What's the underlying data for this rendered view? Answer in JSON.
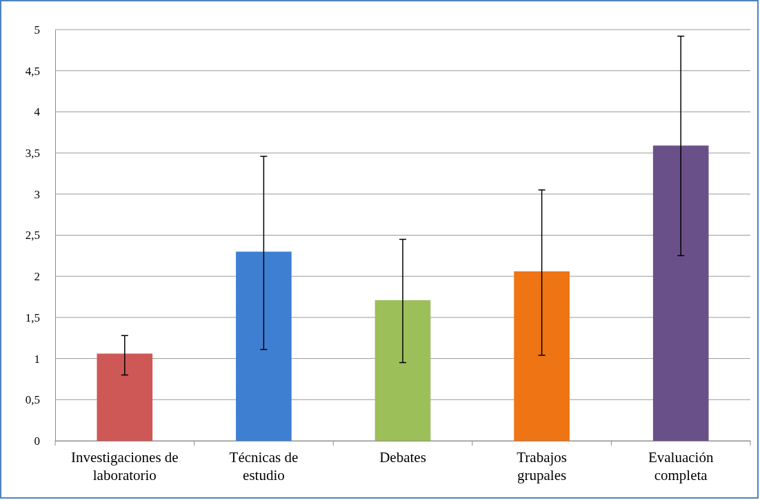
{
  "chart_data": {
    "type": "bar",
    "categories": [
      "Investigaciones de laboratorio",
      "Técnicas de estudio",
      "Debates",
      "Trabajos grupales",
      "Evaluación completa"
    ],
    "values": [
      1.06,
      2.3,
      1.71,
      2.06,
      3.59
    ],
    "colors": [
      "#cd5856",
      "#3f7fd2",
      "#9cbf5a",
      "#ee7414",
      "#6a5089"
    ],
    "errors": [
      [
        0.8,
        1.28
      ],
      [
        1.11,
        3.46
      ],
      [
        0.95,
        2.45
      ],
      [
        1.04,
        3.05
      ],
      [
        2.25,
        4.92
      ]
    ],
    "ylim": [
      0,
      5
    ],
    "yticks": [
      0,
      {
        "value": 0.5,
        "label": "0,5"
      },
      1,
      {
        "value": 1.5,
        "label": "1,5"
      },
      2,
      {
        "value": 2.5,
        "label": "2,5"
      },
      3,
      {
        "value": 3.5,
        "label": "3,5"
      },
      4,
      {
        "value": 4.5,
        "label": "4,5"
      },
      5
    ],
    "grid": "y"
  }
}
